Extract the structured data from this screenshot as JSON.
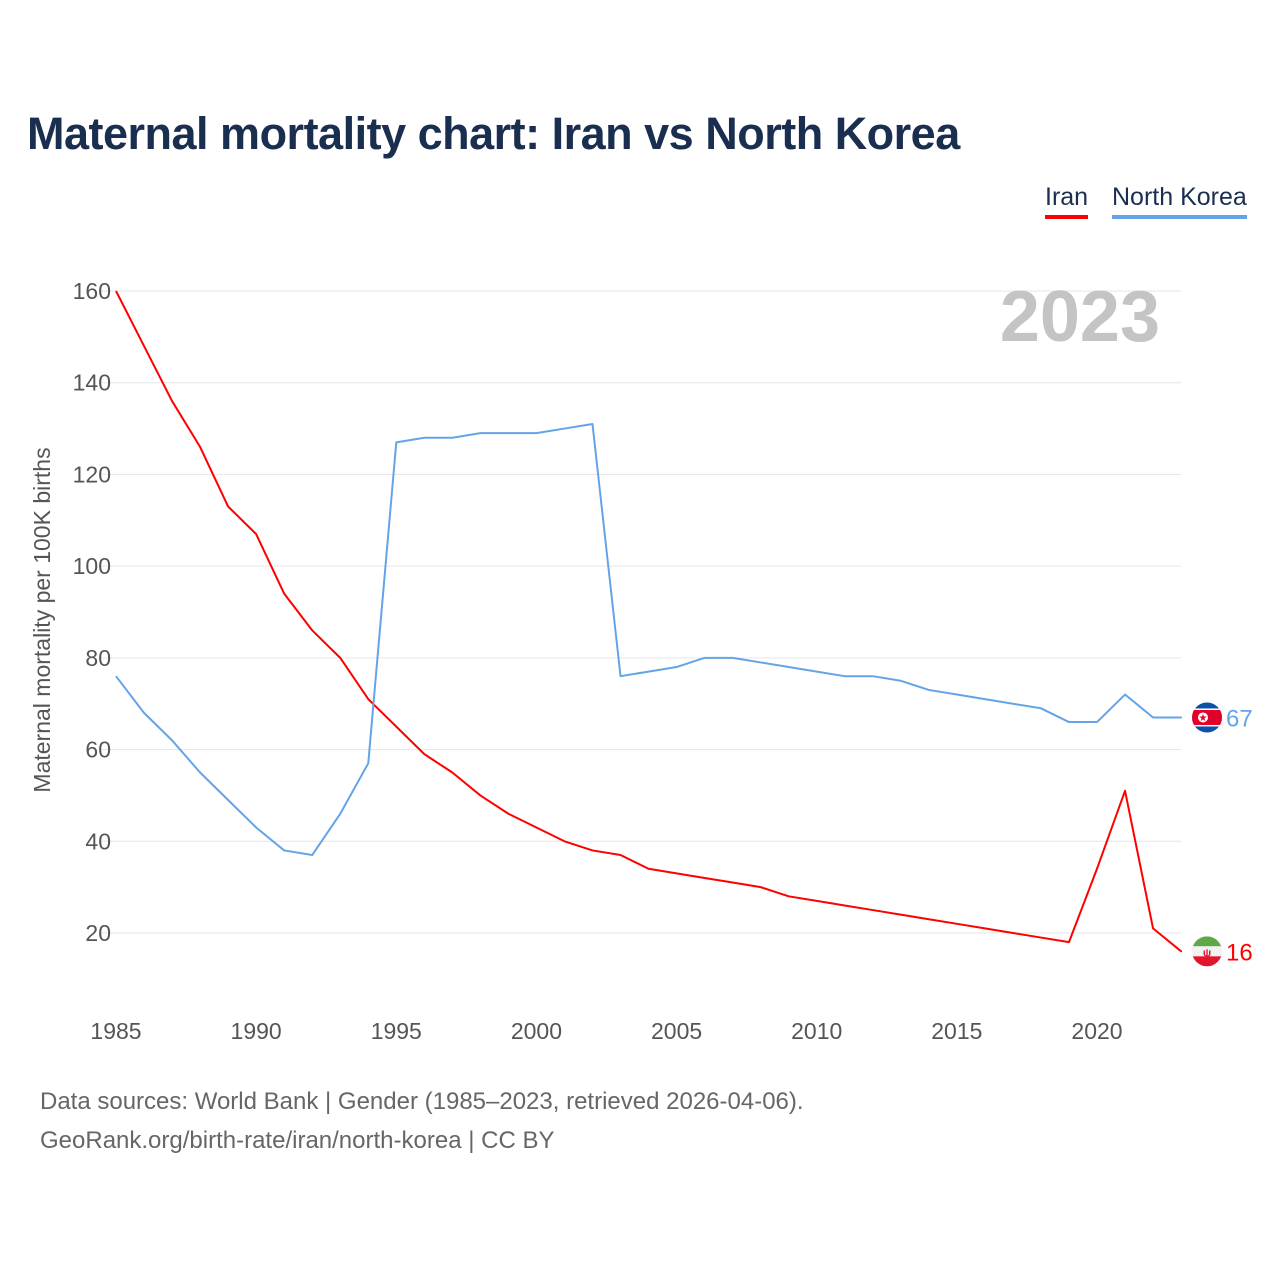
{
  "chart_data": {
    "type": "line",
    "title": "Maternal mortality chart: Iran vs North Korea",
    "ylabel": "Maternal mortality per 100K births",
    "xlabel": "",
    "year_label": "2023",
    "xlim": [
      1985,
      2023
    ],
    "ylim": [
      0,
      160
    ],
    "xticks": [
      1985,
      1990,
      1995,
      2000,
      2005,
      2010,
      2015,
      2020
    ],
    "yticks": [
      20,
      40,
      60,
      80,
      100,
      120,
      140,
      160
    ],
    "grid": true,
    "legend_position": "top-right",
    "x": [
      1985,
      1986,
      1987,
      1988,
      1989,
      1990,
      1991,
      1992,
      1993,
      1994,
      1995,
      1996,
      1997,
      1998,
      1999,
      2000,
      2001,
      2002,
      2003,
      2004,
      2005,
      2006,
      2007,
      2008,
      2009,
      2010,
      2011,
      2012,
      2013,
      2014,
      2015,
      2016,
      2017,
      2018,
      2019,
      2020,
      2021,
      2022,
      2023
    ],
    "series": [
      {
        "name": "Iran",
        "color": "#ff0000",
        "end_label": "16",
        "values": [
          160,
          148,
          136,
          126,
          113,
          107,
          94,
          86,
          80,
          71,
          65,
          59,
          55,
          50,
          46,
          43,
          40,
          38,
          37,
          34,
          33,
          32,
          31,
          30,
          28,
          27,
          26,
          25,
          24,
          23,
          22,
          21,
          20,
          19,
          18,
          34,
          51,
          21,
          16
        ]
      },
      {
        "name": "North Korea",
        "color": "#63a4e8",
        "end_label": "67",
        "values": [
          76,
          68,
          62,
          55,
          49,
          43,
          38,
          37,
          46,
          57,
          127,
          128,
          128,
          129,
          129,
          129,
          130,
          131,
          76,
          77,
          78,
          80,
          80,
          79,
          78,
          77,
          76,
          76,
          75,
          73,
          72,
          71,
          70,
          69,
          66,
          66,
          72,
          67,
          67
        ]
      }
    ]
  },
  "footer": {
    "line1": "Data sources: World Bank | Gender (1985–2023, retrieved 2026-04-06).",
    "line2": "GeoRank.org/birth-rate/iran/north-korea | CC BY"
  }
}
